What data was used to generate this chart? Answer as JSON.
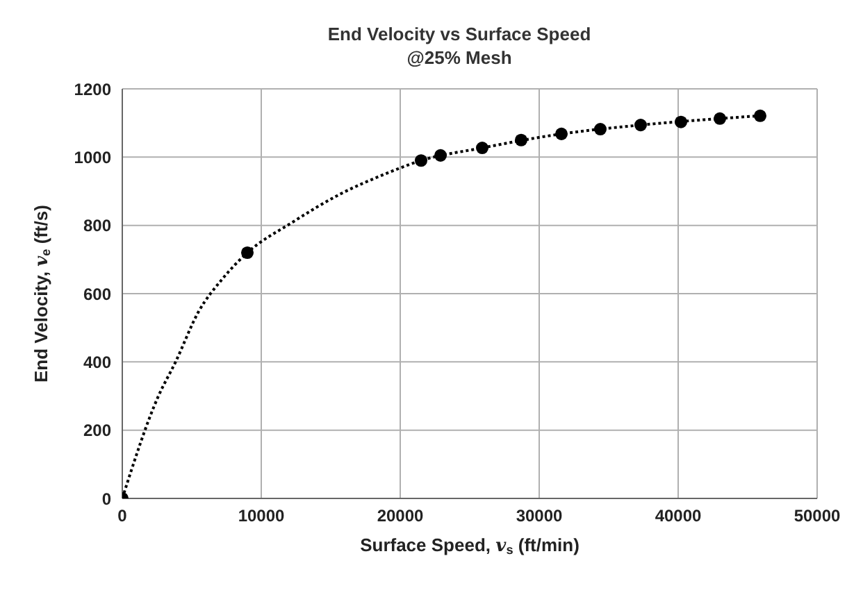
{
  "chart_data": {
    "type": "scatter",
    "title": "End Velocity vs Surface Speed",
    "subtitle": "@25% Mesh",
    "xlabel": "Surface Speed, v$_{s}$ (ft/min)",
    "ylabel": "End Velocity, v$_{e}$ (ft/s)",
    "x": [
      0,
      9000,
      21500,
      22900,
      25900,
      28700,
      31600,
      34400,
      37300,
      40200,
      43000,
      45900
    ],
    "series": [
      {
        "color": "#000000",
        "marker": "circle",
        "values": [
          0,
          720,
          990,
          1005,
          1027,
          1050,
          1068,
          1082,
          1094,
          1103,
          1113,
          1121
        ]
      },
      {
        "type": "line",
        "color": "#000000",
        "marker": "none",
        "line_style": "dotted",
        "x": [
          0,
          2600,
          3800,
          5500,
          7200,
          9000,
          12200,
          15600,
          19000,
          21500,
          25900,
          31600,
          37300,
          43000,
          45900
        ],
        "values": [
          0,
          300,
          397,
          548,
          643,
          720,
          808,
          890,
          952,
          990,
          1027,
          1068,
          1094,
          1113,
          1121
        ]
      }
    ],
    "xlim": [
      0,
      50000
    ],
    "xticks": [
      0,
      10000,
      20000,
      30000,
      40000,
      50000
    ],
    "ylim": [
      0,
      1200
    ],
    "yticks": [
      0,
      200,
      400,
      600,
      800,
      1000,
      1200
    ],
    "grid": true
  }
}
